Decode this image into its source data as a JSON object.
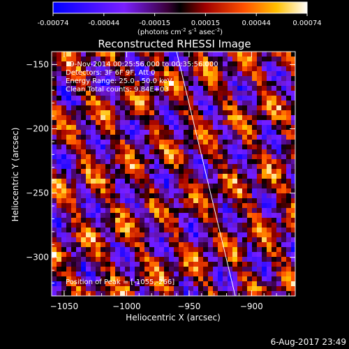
{
  "chart_data": {
    "type": "heatmap",
    "title": "Reconstructed RHESSI Image",
    "xlabel": "Heliocentric X (arcsec)",
    "ylabel": "Heliocentric Y (arcsec)",
    "xlim": [
      -1060,
      -865
    ],
    "ylim": [
      -330,
      -140
    ],
    "x_ticks": [
      -1050,
      -1000,
      -950,
      -900
    ],
    "y_ticks": [
      -150,
      -200,
      -250,
      -300
    ],
    "colorbar": {
      "range": [
        -0.00074,
        0.00074
      ],
      "ticks": [
        "-0.00074",
        "-0.00044",
        "-0.00015",
        "0.00015",
        "0.00044",
        "0.00074"
      ],
      "unit_label": "(photons cm",
      "unit_sup1": "-2",
      "unit_mid": " s",
      "unit_sup2": "-1",
      "unit_mid2": " asec",
      "unit_sup3": "-2",
      "unit_end": ")"
    },
    "annotations": {
      "time_range": "19-Nov-2014 00:25:56.000 to 00:35:56.000",
      "detectors": "Detectors: 3F 6F 9F, Att 0",
      "energy": "Energy Range: 25.0 - 50.0 keV",
      "method": "Clean    Total counts: 9.84E+03",
      "peak": "Position of Peak = [-1055,-266]"
    },
    "limb_line": {
      "x": [
        -960,
        -913
      ],
      "y": [
        -140,
        -330
      ]
    },
    "grid": false
  },
  "footer": {
    "date": "6-Aug-2017 23:49"
  }
}
